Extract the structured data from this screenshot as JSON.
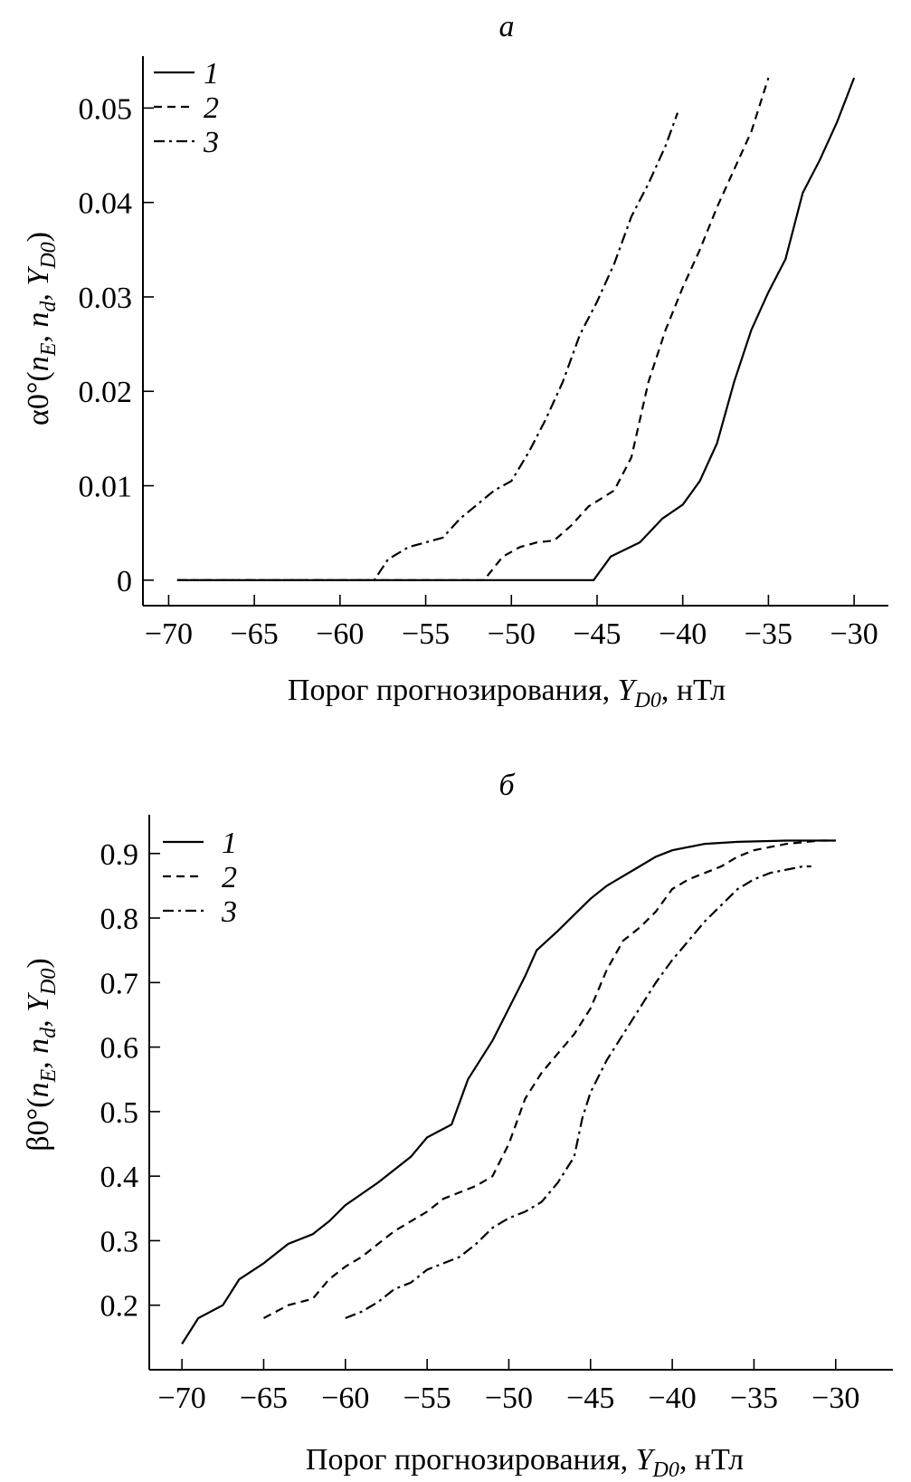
{
  "chart_data": [
    {
      "type": "line",
      "panel_label": "а",
      "xlabel_main": "Порог прогнозирования, ",
      "xlabel_var": "Y",
      "xlabel_sub": "D0",
      "xlabel_unit": ", нТл",
      "ylabel": "α0°(n_E, n_d, Y_D0)",
      "ylabel_parts": {
        "a": "α0°(",
        "n": "n",
        "e": "E",
        "comma1": ", ",
        "nd": "n",
        "d": "d",
        "comma2": ", ",
        "y": "Y",
        "d0": "D0",
        "close": ")"
      },
      "xlim": [
        -71.5,
        -28
      ],
      "ylim": [
        -0.0027,
        0.0555
      ],
      "xticks": [
        "−70",
        "−65",
        "−60",
        "−55",
        "−50",
        "−45",
        "−40",
        "−35",
        "−30"
      ],
      "xtick_values": [
        -70,
        -65,
        -60,
        -55,
        -50,
        -45,
        -40,
        -35,
        -30
      ],
      "yticks": [
        "0",
        "0.01",
        "0.02",
        "0.03",
        "0.04",
        "0.05"
      ],
      "ytick_values": [
        0,
        0.01,
        0.02,
        0.03,
        0.04,
        0.05
      ],
      "grid": false,
      "legend_position": "top-left",
      "series": [
        {
          "name": "1",
          "dash": "solid",
          "x": [
            -69.5,
            -45.2,
            -44.2,
            -42.5,
            -41.2,
            -40,
            -39,
            -38,
            -37,
            -36,
            -35,
            -34,
            -33,
            -32,
            -31,
            -30
          ],
          "y": [
            0,
            0,
            0.0025,
            0.004,
            0.0065,
            0.008,
            0.0105,
            0.0145,
            0.021,
            0.0265,
            0.0305,
            0.034,
            0.041,
            0.0445,
            0.0485,
            0.0532
          ]
        },
        {
          "name": "2",
          "dash": "dash",
          "x": [
            -69.5,
            -51.6,
            -50.5,
            -49.5,
            -48.5,
            -47.5,
            -46.5,
            -45.5,
            -44,
            -43,
            -42,
            -41,
            -40,
            -39,
            -38,
            -37,
            -36,
            -35
          ],
          "y": [
            0,
            0,
            0.0025,
            0.0035,
            0.004,
            0.0042,
            0.0058,
            0.0078,
            0.0095,
            0.013,
            0.021,
            0.0265,
            0.031,
            0.035,
            0.0395,
            0.0435,
            0.0475,
            0.0532
          ]
        },
        {
          "name": "3",
          "dash": "dashdot",
          "x": [
            -69.5,
            -58,
            -57.2,
            -56,
            -55,
            -54,
            -53,
            -52,
            -51,
            -50,
            -49,
            -48,
            -47,
            -46,
            -45,
            -44,
            -43,
            -42,
            -41,
            -40.3
          ],
          "y": [
            0,
            0,
            0.0022,
            0.0035,
            0.004,
            0.0045,
            0.0065,
            0.008,
            0.0095,
            0.0105,
            0.0135,
            0.017,
            0.021,
            0.026,
            0.0295,
            0.0335,
            0.0385,
            0.042,
            0.046,
            0.0495
          ]
        }
      ]
    },
    {
      "type": "line",
      "panel_label": "б",
      "xlabel_main": "Порог прогнозирования, ",
      "xlabel_var": "Y",
      "xlabel_sub": "D0",
      "xlabel_unit": ", нТл",
      "ylabel": "β0°(n_E, n_d, Y_D0)",
      "ylabel_parts": {
        "a": "β0°(",
        "n": "n",
        "e": "E",
        "comma1": ", ",
        "nd": "n",
        "d": "d",
        "comma2": ", ",
        "y": "Y",
        "d0": "D0",
        "close": ")"
      },
      "xlim": [
        -72,
        -26.5
      ],
      "ylim": [
        0.1,
        0.96
      ],
      "xticks": [
        "−70",
        "−65",
        "−60",
        "−55",
        "−50",
        "−45",
        "−40",
        "−35",
        "−30"
      ],
      "xtick_values": [
        -70,
        -65,
        -60,
        -55,
        -50,
        -45,
        -40,
        -35,
        -30
      ],
      "yticks": [
        "0.2",
        "0.3",
        "0.4",
        "0.5",
        "0.6",
        "0.7",
        "0.8",
        "0.9"
      ],
      "ytick_values": [
        0.2,
        0.3,
        0.4,
        0.5,
        0.6,
        0.7,
        0.8,
        0.9
      ],
      "grid": false,
      "legend_position": "top-left",
      "series": [
        {
          "name": "1",
          "dash": "solid",
          "x": [
            -70,
            -69,
            -67.5,
            -66.5,
            -65,
            -63.5,
            -62,
            -61,
            -60,
            -58,
            -56,
            -55,
            -53.5,
            -52.5,
            -51,
            -50,
            -49,
            -48.3,
            -47,
            -45,
            -44,
            -43,
            -42,
            -41,
            -40,
            -38,
            -36,
            -33,
            -30
          ],
          "y": [
            0.14,
            0.18,
            0.2,
            0.24,
            0.265,
            0.295,
            0.31,
            0.33,
            0.355,
            0.39,
            0.43,
            0.46,
            0.48,
            0.55,
            0.61,
            0.66,
            0.71,
            0.75,
            0.78,
            0.83,
            0.85,
            0.865,
            0.88,
            0.895,
            0.905,
            0.915,
            0.918,
            0.92,
            0.92
          ]
        },
        {
          "name": "2",
          "dash": "dash",
          "x": [
            -65,
            -63.5,
            -62,
            -61,
            -60,
            -59,
            -58,
            -57,
            -56,
            -55,
            -54,
            -53,
            -52,
            -51,
            -50,
            -49,
            -48,
            -47,
            -46,
            -45,
            -44,
            -43,
            -42,
            -41,
            -40,
            -39,
            -38,
            -37,
            -36,
            -35,
            -34,
            -33,
            -31,
            -30
          ],
          "y": [
            0.18,
            0.2,
            0.21,
            0.24,
            0.26,
            0.275,
            0.295,
            0.315,
            0.33,
            0.345,
            0.365,
            0.375,
            0.385,
            0.4,
            0.45,
            0.52,
            0.56,
            0.59,
            0.62,
            0.66,
            0.72,
            0.765,
            0.785,
            0.81,
            0.845,
            0.86,
            0.87,
            0.88,
            0.895,
            0.905,
            0.91,
            0.915,
            0.92,
            0.92
          ]
        },
        {
          "name": "3",
          "dash": "dashdot",
          "x": [
            -60,
            -59,
            -58,
            -57,
            -56,
            -55,
            -54,
            -53,
            -52,
            -51,
            -50,
            -49,
            -48,
            -47,
            -46,
            -45.5,
            -45,
            -44,
            -43,
            -42,
            -41,
            -40,
            -39,
            -38,
            -37,
            -36,
            -35,
            -34,
            -33,
            -32,
            -31.5
          ],
          "y": [
            0.18,
            0.19,
            0.205,
            0.225,
            0.235,
            0.255,
            0.265,
            0.275,
            0.295,
            0.32,
            0.335,
            0.345,
            0.36,
            0.39,
            0.43,
            0.49,
            0.53,
            0.58,
            0.62,
            0.66,
            0.7,
            0.735,
            0.765,
            0.795,
            0.82,
            0.845,
            0.86,
            0.87,
            0.875,
            0.88,
            0.88
          ]
        }
      ]
    }
  ]
}
